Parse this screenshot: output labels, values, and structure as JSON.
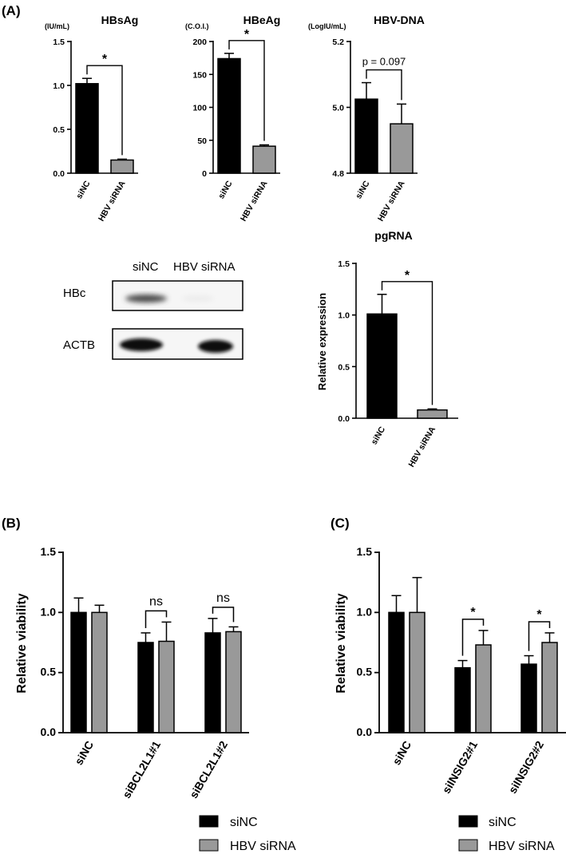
{
  "panels": {
    "A": "(A)",
    "B": "(B)",
    "C": "(C)"
  },
  "chart_data": [
    {
      "id": "hbsag",
      "type": "bar",
      "title": "HBsAg",
      "unit": "(IU/mL)",
      "categories": [
        "siNC",
        "HBV siRNA"
      ],
      "values": [
        1.02,
        0.15
      ],
      "errors": [
        0.06,
        0.01
      ],
      "colors": [
        "#000000",
        "#999999"
      ],
      "ylim": [
        0,
        1.5
      ],
      "yticks": [
        0.0,
        0.5,
        1.0,
        1.5
      ],
      "tick_labels": [
        "0.0",
        "0.5",
        "1.0",
        "1.5"
      ],
      "annotation": {
        "text": "*",
        "style": "sig"
      }
    },
    {
      "id": "hbeag",
      "type": "bar",
      "title": "HBeAg",
      "unit": "(C.O.I.)",
      "categories": [
        "siNC",
        "HBV siRNA"
      ],
      "values": [
        174,
        41
      ],
      "errors": [
        8,
        2
      ],
      "colors": [
        "#000000",
        "#999999"
      ],
      "ylim": [
        0,
        200
      ],
      "yticks": [
        0,
        50,
        100,
        150,
        200
      ],
      "tick_labels": [
        "0",
        "50",
        "100",
        "150",
        "200"
      ],
      "annotation": {
        "text": "*",
        "style": "sig"
      }
    },
    {
      "id": "hbvdna",
      "type": "bar",
      "title": "HBV-DNA",
      "unit": "(LogIU/mL)",
      "categories": [
        "siNC",
        "HBV siRNA"
      ],
      "values": [
        5.025,
        4.95
      ],
      "errors": [
        0.05,
        0.06
      ],
      "colors": [
        "#000000",
        "#999999"
      ],
      "ylim": [
        4.8,
        5.2
      ],
      "yticks": [
        4.8,
        5.0,
        5.2
      ],
      "tick_labels": [
        "4.8",
        "5.0",
        "5.2"
      ],
      "annotation": {
        "text": "p = 0.097",
        "style": "pval"
      }
    },
    {
      "id": "pgrna",
      "type": "bar",
      "title": "pgRNA",
      "ylabel": "Relative expression",
      "categories": [
        "siNC",
        "HBV siRNA"
      ],
      "values": [
        1.01,
        0.08
      ],
      "errors": [
        0.19,
        0.01
      ],
      "colors": [
        "#000000",
        "#999999"
      ],
      "ylim": [
        0,
        1.5
      ],
      "yticks": [
        0.0,
        0.5,
        1.0,
        1.5
      ],
      "tick_labels": [
        "0.0",
        "0.5",
        "1.0",
        "1.5"
      ],
      "annotation": {
        "text": "*",
        "style": "sig"
      }
    },
    {
      "id": "viability-b",
      "type": "bar",
      "ylabel": "Relative viability",
      "categories": [
        "siNC",
        "siBCL2L1#1",
        "siBCL2L1#2"
      ],
      "series": [
        {
          "name": "siNC",
          "color": "#000000",
          "values": [
            1.0,
            0.75,
            0.83
          ],
          "errors": [
            0.12,
            0.08,
            0.12
          ]
        },
        {
          "name": "HBV siRNA",
          "color": "#999999",
          "values": [
            1.0,
            0.76,
            0.84
          ],
          "errors": [
            0.06,
            0.16,
            0.04
          ]
        }
      ],
      "ylim": [
        0,
        1.5
      ],
      "yticks": [
        0.0,
        0.5,
        1.0,
        1.5
      ],
      "tick_labels": [
        "0.0",
        "0.5",
        "1.0",
        "1.5"
      ],
      "annotations": [
        "",
        "ns",
        "ns"
      ]
    },
    {
      "id": "viability-c",
      "type": "bar",
      "ylabel": "Relative viability",
      "categories": [
        "siNC",
        "siINSIG2#1",
        "siINSIG2#2"
      ],
      "series": [
        {
          "name": "siNC",
          "color": "#000000",
          "values": [
            1.0,
            0.54,
            0.57
          ],
          "errors": [
            0.14,
            0.06,
            0.07
          ]
        },
        {
          "name": "HBV siRNA",
          "color": "#999999",
          "values": [
            1.0,
            0.73,
            0.75
          ],
          "errors": [
            0.29,
            0.12,
            0.08
          ]
        }
      ],
      "ylim": [
        0,
        1.5
      ],
      "yticks": [
        0.0,
        0.5,
        1.0,
        1.5
      ],
      "tick_labels": [
        "0.0",
        "0.5",
        "1.0",
        "1.5"
      ],
      "annotations": [
        "",
        "*",
        "*"
      ]
    }
  ],
  "western_blot": {
    "columns": [
      "siNC",
      "HBV siRNA"
    ],
    "rows": [
      {
        "label": "HBc",
        "band_intensity": [
          0.7,
          0.0
        ]
      },
      {
        "label": "ACTB",
        "band_intensity": [
          1.0,
          1.0
        ]
      }
    ]
  },
  "legend_b": [
    {
      "label": "siNC",
      "color": "#000000"
    },
    {
      "label": "HBV siRNA",
      "color": "#999999"
    }
  ],
  "legend_c": [
    {
      "label": "siNC",
      "color": "#000000"
    },
    {
      "label": "HBV siRNA",
      "color": "#999999"
    }
  ]
}
